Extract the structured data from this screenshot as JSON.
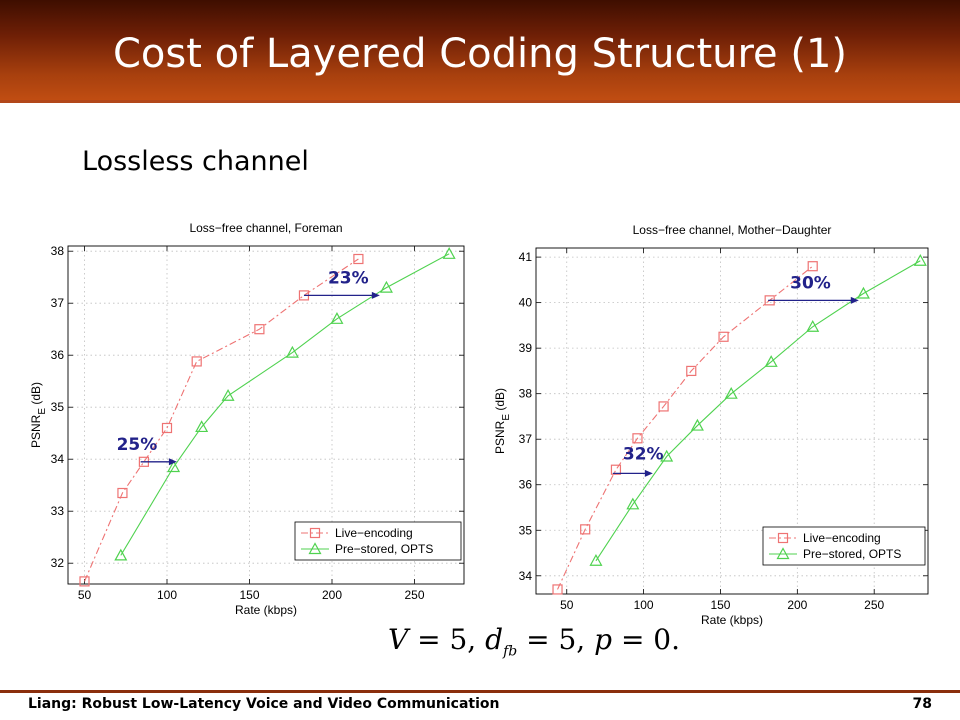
{
  "slide": {
    "title": "Cost of Layered Coding Structure (1)",
    "subtitle": "Lossless channel",
    "formula": {
      "v": "V",
      "v_eq": " = 5, ",
      "d": "d",
      "d_sub": "fb",
      "d_eq": " = 5, ",
      "p": "p",
      "p_eq": " = 0."
    },
    "footer_left": "Liang: Robust Low-Latency Voice and Video Communication",
    "page_number": "78"
  },
  "colors": {
    "header_dark": "#3e0e00",
    "header_light": "#c04d12",
    "live": "#ee7373",
    "prestored": "#4fd24f",
    "annotation": "#22228a"
  },
  "chart_data": [
    {
      "type": "line",
      "title": "Loss−free channel, Foreman",
      "xlabel": "Rate (kbps)",
      "ylabel": "PSNR",
      "ylabel_sub": "E",
      "ylabel_unit": "(dB)",
      "xlim": [
        40,
        280
      ],
      "ylim": [
        31.6,
        38.1
      ],
      "xticks": [
        50,
        100,
        150,
        200,
        250
      ],
      "yticks": [
        32,
        33,
        34,
        35,
        36,
        37,
        38
      ],
      "grid": true,
      "legend_position": "bottom-right",
      "series": [
        {
          "name": "Live−encoding",
          "color": "#ee7373",
          "marker": "square",
          "dash": true,
          "x": [
            50,
            73,
            86,
            100,
            118,
            156,
            183,
            216
          ],
          "y": [
            31.65,
            33.35,
            33.95,
            34.6,
            35.88,
            36.5,
            37.15,
            37.85
          ]
        },
        {
          "name": "Pre−stored, OPTS",
          "color": "#4fd24f",
          "marker": "triangle",
          "dash": false,
          "x": [
            72,
            104,
            121,
            137,
            176,
            203,
            233,
            271
          ],
          "y": [
            32.15,
            33.85,
            34.62,
            35.22,
            36.05,
            36.7,
            37.3,
            37.95
          ]
        }
      ],
      "annotations": [
        {
          "text": "25%",
          "arrow_from": [
            84,
            33.95
          ],
          "arrow_to": [
            106,
            33.95
          ]
        },
        {
          "text": "23%",
          "arrow_from": [
            183,
            37.15
          ],
          "arrow_to": [
            229,
            37.15
          ]
        }
      ]
    },
    {
      "type": "line",
      "title": "Loss−free channel, Mother−Daughter",
      "xlabel": "Rate (kbps)",
      "ylabel": "PSNR",
      "ylabel_sub": "E",
      "ylabel_unit": "(dB)",
      "xlim": [
        30,
        285
      ],
      "ylim": [
        33.6,
        41.2
      ],
      "xticks": [
        50,
        100,
        150,
        200,
        250
      ],
      "yticks": [
        34,
        35,
        36,
        37,
        38,
        39,
        40,
        41
      ],
      "grid": true,
      "legend_position": "bottom-right",
      "series": [
        {
          "name": "Live−encoding",
          "color": "#ee7373",
          "marker": "square",
          "dash": true,
          "x": [
            44,
            62,
            82,
            96,
            113,
            131,
            152,
            182,
            210
          ],
          "y": [
            33.7,
            35.02,
            36.33,
            37.02,
            37.72,
            38.5,
            39.25,
            40.05,
            40.8
          ]
        },
        {
          "name": "Pre−stored, OPTS",
          "color": "#4fd24f",
          "marker": "triangle",
          "dash": false,
          "x": [
            69,
            93,
            115,
            135,
            157,
            183,
            210,
            243,
            280
          ],
          "y": [
            34.33,
            35.57,
            36.62,
            37.3,
            38.0,
            38.7,
            39.47,
            40.2,
            40.92
          ]
        }
      ],
      "annotations": [
        {
          "text": "32%",
          "arrow_from": [
            80,
            36.25
          ],
          "arrow_to": [
            106,
            36.25
          ]
        },
        {
          "text": "30%",
          "arrow_from": [
            181,
            40.05
          ],
          "arrow_to": [
            240,
            40.05
          ]
        }
      ]
    }
  ]
}
